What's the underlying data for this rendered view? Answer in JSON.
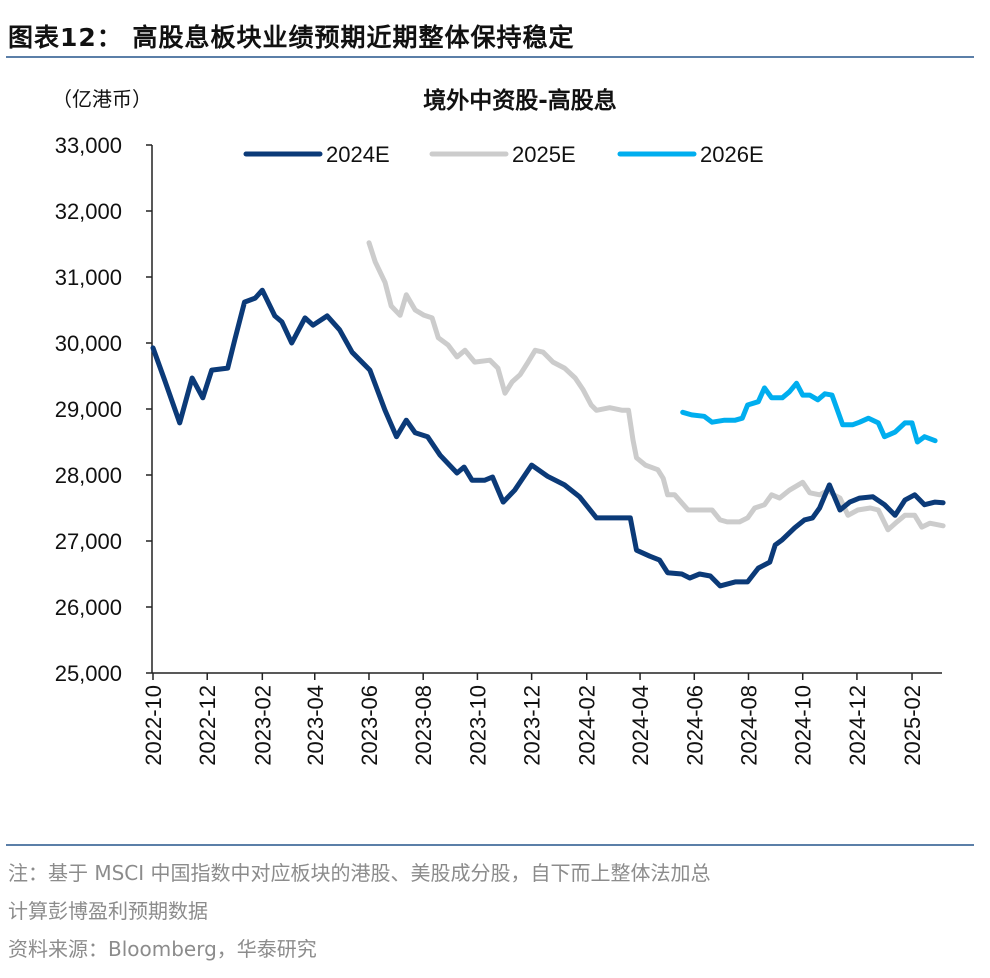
{
  "figure": {
    "title": "图表12：  高股息板块业绩预期近期整体保持稳定",
    "note_line1": "注：基于 MSCI 中国指数中对应板块的港股、美股成分股，自下而上整体法加总",
    "note_line2": "计算彭博盈利预期数据",
    "source": "资料来源：Bloomberg，华泰研究"
  },
  "chart_data": {
    "type": "line",
    "title": "境外中资股-高股息",
    "ylabel": "（亿港币）",
    "xlabel": "",
    "ylim": [
      25000,
      33000
    ],
    "xlim": [
      "2022-10-01",
      "2025-03-10"
    ],
    "yticks": [
      "25,000",
      "26,000",
      "27,000",
      "28,000",
      "29,000",
      "30,000",
      "31,000",
      "32,000",
      "33,000"
    ],
    "xticks": [
      "2022-10",
      "2022-12",
      "2023-02",
      "2023-04",
      "2023-06",
      "2023-08",
      "2023-10",
      "2023-12",
      "2024-02",
      "2024-04",
      "2024-06",
      "2024-08",
      "2024-10",
      "2024-12",
      "2025-02"
    ],
    "grid": false,
    "legend_position": "top",
    "series": [
      {
        "name": "2024E",
        "color": "#0b3a78",
        "x": [
          "2022-10-01",
          "2022-10-14",
          "2022-10-31",
          "2022-11-14",
          "2022-11-26",
          "2022-12-06",
          "2022-12-24",
          "2023-01-01",
          "2023-01-12",
          "2023-01-24",
          "2023-02-01",
          "2023-02-15",
          "2023-02-23",
          "2023-03-06",
          "2023-03-21",
          "2023-03-30",
          "2023-04-15",
          "2023-04-29",
          "2023-05-13",
          "2023-06-02",
          "2023-06-19",
          "2023-07-02",
          "2023-07-13",
          "2023-07-23",
          "2023-08-06",
          "2023-08-20",
          "2023-09-08",
          "2023-09-16",
          "2023-09-25",
          "2023-10-09",
          "2023-10-18",
          "2023-10-30",
          "2023-11-12",
          "2023-12-01",
          "2023-12-19",
          "2024-01-07",
          "2024-01-24",
          "2024-02-12",
          "2024-03-04",
          "2024-03-21",
          "2024-03-28",
          "2024-04-12",
          "2024-04-23",
          "2024-05-02",
          "2024-05-18",
          "2024-05-27",
          "2024-06-07",
          "2024-06-19",
          "2024-06-30",
          "2024-07-17",
          "2024-07-31",
          "2024-08-12",
          "2024-08-25",
          "2024-08-31",
          "2024-09-08",
          "2024-09-22",
          "2024-10-03",
          "2024-10-12",
          "2024-10-20",
          "2024-10-31",
          "2024-11-12",
          "2024-11-23",
          "2024-12-04",
          "2024-12-19",
          "2025-01-01",
          "2025-01-13",
          "2025-01-24",
          "2025-02-04",
          "2025-02-15",
          "2025-02-27",
          "2025-03-08"
        ],
        "values": [
          29925,
          29440,
          28790,
          29470,
          29170,
          29590,
          29620,
          30050,
          30620,
          30680,
          30800,
          30410,
          30320,
          30000,
          30380,
          30270,
          30410,
          30200,
          29860,
          29590,
          28980,
          28580,
          28830,
          28640,
          28580,
          28300,
          28030,
          28120,
          27920,
          27920,
          27970,
          27590,
          27770,
          28150,
          27980,
          27850,
          27670,
          27350,
          27350,
          27350,
          26860,
          26770,
          26710,
          26520,
          26500,
          26440,
          26500,
          26470,
          26320,
          26380,
          26380,
          26590,
          26680,
          26940,
          27020,
          27200,
          27320,
          27350,
          27500,
          27850,
          27470,
          27590,
          27650,
          27670,
          27550,
          27390,
          27620,
          27700,
          27550,
          27590,
          27580
        ]
      },
      {
        "name": "2025E",
        "color": "#cccccc",
        "x": [
          "2023-06-01",
          "2023-06-08",
          "2023-06-19",
          "2023-06-26",
          "2023-07-06",
          "2023-07-13",
          "2023-07-23",
          "2023-08-02",
          "2023-08-11",
          "2023-08-18",
          "2023-08-29",
          "2023-09-08",
          "2023-09-17",
          "2023-09-28",
          "2023-10-15",
          "2023-10-24",
          "2023-11-01",
          "2023-11-09",
          "2023-11-18",
          "2023-11-27",
          "2023-12-05",
          "2023-12-14",
          "2023-12-25",
          "2024-01-07",
          "2024-01-19",
          "2024-01-28",
          "2024-02-06",
          "2024-02-12",
          "2024-02-27",
          "2024-03-12",
          "2024-03-19",
          "2024-03-24",
          "2024-03-28",
          "2024-04-07",
          "2024-04-21",
          "2024-04-27",
          "2024-05-02",
          "2024-05-10",
          "2024-05-25",
          "2024-06-07",
          "2024-06-21",
          "2024-06-30",
          "2024-07-08",
          "2024-07-22",
          "2024-07-31",
          "2024-08-08",
          "2024-08-19",
          "2024-08-27",
          "2024-09-05",
          "2024-09-16",
          "2024-10-01",
          "2024-10-09",
          "2024-10-20",
          "2024-10-30",
          "2024-11-05",
          "2024-11-12",
          "2024-11-21",
          "2024-12-02",
          "2024-12-16",
          "2024-12-25",
          "2025-01-05",
          "2025-01-15",
          "2025-01-24",
          "2025-02-04",
          "2025-02-12",
          "2025-02-21",
          "2025-03-08"
        ],
        "values": [
          31520,
          31230,
          30920,
          30560,
          30420,
          30730,
          30500,
          30420,
          30380,
          30080,
          29970,
          29790,
          29890,
          29710,
          29740,
          29620,
          29240,
          29410,
          29520,
          29710,
          29890,
          29860,
          29710,
          29620,
          29470,
          29290,
          29060,
          28980,
          29020,
          28980,
          28980,
          28530,
          28260,
          28150,
          28080,
          27950,
          27700,
          27700,
          27470,
          27470,
          27470,
          27320,
          27290,
          27290,
          27350,
          27500,
          27550,
          27700,
          27650,
          27770,
          27890,
          27730,
          27700,
          27770,
          27700,
          27650,
          27390,
          27470,
          27500,
          27470,
          27170,
          27290,
          27390,
          27390,
          27210,
          27270,
          27230
        ]
      },
      {
        "name": "2026E",
        "color": "#00aeef",
        "x": [
          "2024-05-19",
          "2024-05-29",
          "2024-06-12",
          "2024-06-21",
          "2024-07-05",
          "2024-07-17",
          "2024-07-25",
          "2024-07-31",
          "2024-08-12",
          "2024-08-19",
          "2024-08-27",
          "2024-09-08",
          "2024-09-16",
          "2024-09-24",
          "2024-10-01",
          "2024-10-09",
          "2024-10-18",
          "2024-10-26",
          "2024-11-03",
          "2024-11-15",
          "2024-11-26",
          "2024-12-04",
          "2024-12-14",
          "2024-12-25",
          "2025-01-01",
          "2025-01-13",
          "2025-01-24",
          "2025-02-01",
          "2025-02-07",
          "2025-02-15",
          "2025-02-27"
        ],
        "values": [
          28950,
          28910,
          28890,
          28800,
          28830,
          28830,
          28860,
          29060,
          29110,
          29320,
          29170,
          29170,
          29260,
          29390,
          29210,
          29210,
          29140,
          29230,
          29210,
          28760,
          28760,
          28800,
          28860,
          28790,
          28580,
          28650,
          28790,
          28790,
          28500,
          28580,
          28520
        ]
      }
    ]
  }
}
